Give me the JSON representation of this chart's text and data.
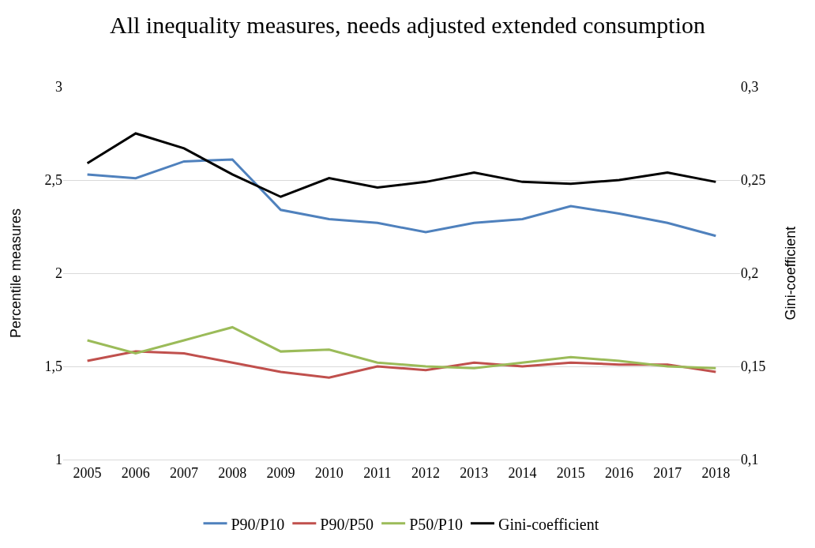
{
  "chart_data": {
    "type": "line",
    "title": "All inequality measures, needs adjusted extended consumption",
    "categories": [
      "2005",
      "2006",
      "2007",
      "2008",
      "2009",
      "2010",
      "2011",
      "2012",
      "2013",
      "2014",
      "2015",
      "2016",
      "2017",
      "2018"
    ],
    "ylabel": "Percentile measures",
    "y2label": "Gini-coefficient",
    "ylim": [
      1,
      3
    ],
    "yticks": [
      1,
      {
        "value": 1.5,
        "label": "1,5"
      },
      2,
      {
        "value": 2.5,
        "label": "2,5"
      },
      3
    ],
    "y2lim": [
      0.1,
      0.3
    ],
    "y2ticks": [
      {
        "value": 0.1,
        "label": "0,1"
      },
      {
        "value": 0.15,
        "label": "0,15"
      },
      {
        "value": 0.2,
        "label": "0,2"
      },
      {
        "value": 0.25,
        "label": "0,25"
      },
      {
        "value": 0.3,
        "label": "0,3"
      }
    ],
    "grid": "y",
    "legend": "bottom",
    "marker": "none",
    "series": [
      {
        "name": "P90/P10",
        "color": "#4f81bd",
        "values": [
          2.53,
          2.51,
          2.6,
          2.61,
          2.34,
          2.29,
          2.27,
          2.22,
          2.27,
          2.29,
          2.36,
          2.32,
          2.27,
          2.2
        ]
      },
      {
        "name": "P90/P50",
        "color": "#c0504d",
        "values": [
          1.53,
          1.58,
          1.57,
          1.52,
          1.47,
          1.44,
          1.5,
          1.48,
          1.52,
          1.5,
          1.52,
          1.51,
          1.51,
          1.47
        ]
      },
      {
        "name": "P50/P10",
        "color": "#9bbb59",
        "values": [
          1.64,
          1.57,
          1.64,
          1.71,
          1.58,
          1.59,
          1.52,
          1.5,
          1.49,
          1.52,
          1.55,
          1.53,
          1.5,
          1.49
        ]
      },
      {
        "name": "Gini-coefficient",
        "color": "#000000",
        "axis": "y2",
        "values": [
          0.259,
          0.275,
          0.267,
          0.253,
          0.241,
          0.251,
          0.246,
          0.249,
          0.254,
          0.249,
          0.248,
          0.25,
          0.254,
          0.249
        ]
      }
    ]
  }
}
